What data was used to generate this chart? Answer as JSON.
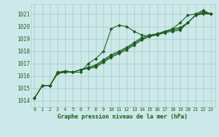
{
  "title": "Graphe pression niveau de la mer (hPa)",
  "bg_color": "#cce8e8",
  "grid_color": "#aacccc",
  "line_color": "#1a5c1a",
  "marker_color": "#1a5c1a",
  "xlim": [
    -0.5,
    23.5
  ],
  "ylim": [
    1013.5,
    1021.8
  ],
  "xticks": [
    0,
    1,
    2,
    3,
    4,
    5,
    6,
    7,
    8,
    9,
    10,
    11,
    12,
    13,
    14,
    15,
    16,
    17,
    18,
    19,
    20,
    21,
    22,
    23
  ],
  "yticks": [
    1014,
    1015,
    1016,
    1017,
    1018,
    1019,
    1020,
    1021
  ],
  "series": [
    [
      1014.2,
      1015.2,
      1015.2,
      1016.3,
      1016.4,
      1016.3,
      1016.3,
      1017.0,
      1017.4,
      1018.0,
      1019.8,
      1020.1,
      1020.0,
      1019.6,
      1019.3,
      1019.2,
      1019.3,
      1019.5,
      1019.8,
      1020.3,
      1020.9,
      1021.0,
      1021.3,
      1021.0
    ],
    [
      1014.2,
      1015.2,
      1015.2,
      1016.2,
      1016.4,
      1016.3,
      1016.5,
      1016.6,
      1016.7,
      1017.1,
      1017.5,
      1017.8,
      1018.1,
      1018.5,
      1018.9,
      1019.2,
      1019.4,
      1019.5,
      1019.6,
      1019.7,
      1020.3,
      1020.9,
      1021.0,
      1021.0
    ],
    [
      1014.2,
      1015.2,
      1015.2,
      1016.2,
      1016.3,
      1016.3,
      1016.5,
      1016.6,
      1016.8,
      1017.2,
      1017.6,
      1017.9,
      1018.2,
      1018.6,
      1019.0,
      1019.2,
      1019.4,
      1019.6,
      1019.7,
      1019.8,
      1020.3,
      1020.9,
      1021.1,
      1021.0
    ],
    [
      1014.2,
      1015.2,
      1015.2,
      1016.2,
      1016.3,
      1016.3,
      1016.5,
      1016.7,
      1016.9,
      1017.3,
      1017.7,
      1018.0,
      1018.3,
      1018.7,
      1019.1,
      1019.3,
      1019.4,
      1019.6,
      1019.8,
      1019.9,
      1020.3,
      1020.9,
      1021.2,
      1021.0
    ]
  ]
}
